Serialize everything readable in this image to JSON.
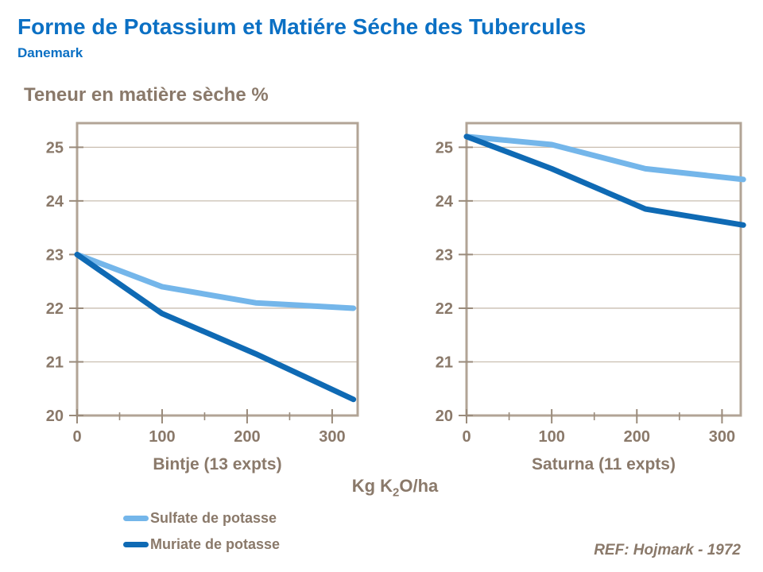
{
  "header": {
    "title": "Forme de Potassium et Matiére Séche des Tubercules",
    "subtitle": "Danemark"
  },
  "y_axis_title": "Teneur en matière sèche %",
  "x_unit": {
    "prefix": "Kg K",
    "sub": "2",
    "suffix": "O/ha"
  },
  "legend": [
    {
      "label": "Sulfate de potasse",
      "color": "#74B6EA"
    },
    {
      "label": "Muriate de potasse",
      "color": "#0F6AB4"
    }
  ],
  "ref": "REF: Hojmark - 1972",
  "colors": {
    "title_blue": "#0B70C4",
    "text_brown": "#8A796A",
    "frame": "#B2A496",
    "grid": "#C9BEB0",
    "tick": "#9A8B7B",
    "sulfate": "#74B6EA",
    "muriate": "#0F6AB4",
    "background": "#FFFFFF"
  },
  "chart_data": [
    {
      "type": "line",
      "title": "Bintje (13 expts)",
      "x_axis_label": "Kg K2O/ha",
      "y_axis_label": "Teneur en matière sèche %",
      "x": [
        0,
        100,
        210,
        325
      ],
      "xticks": [
        0,
        100,
        200,
        300
      ],
      "x_minor_ticks": [
        50,
        150,
        250
      ],
      "xlim": [
        0,
        330
      ],
      "yticks": [
        20,
        21,
        22,
        23,
        24,
        25
      ],
      "ylim": [
        20,
        25.45
      ],
      "grid": "horizontal",
      "legend_position": "below",
      "series": [
        {
          "name": "Sulfate de potasse",
          "color": "#74B6EA",
          "values": [
            23.0,
            22.4,
            22.1,
            22.0
          ]
        },
        {
          "name": "Muriate de potasse",
          "color": "#0F6AB4",
          "values": [
            23.0,
            21.9,
            21.15,
            20.3
          ]
        }
      ]
    },
    {
      "type": "line",
      "title": "Saturna (11 expts)",
      "x_axis_label": "Kg K2O/ha",
      "y_axis_label": "Teneur en matière sèche %",
      "x": [
        0,
        100,
        210,
        325
      ],
      "xticks": [
        0,
        100,
        200,
        300
      ],
      "x_minor_ticks": [
        50,
        150,
        250
      ],
      "xlim": [
        0,
        322
      ],
      "yticks": [
        20,
        21,
        22,
        23,
        24,
        25
      ],
      "ylim": [
        20,
        25.45
      ],
      "grid": "horizontal",
      "legend_position": "below",
      "series": [
        {
          "name": "Sulfate de potasse",
          "color": "#74B6EA",
          "values": [
            25.2,
            25.05,
            24.6,
            24.4
          ]
        },
        {
          "name": "Muriate de potasse",
          "color": "#0F6AB4",
          "values": [
            25.2,
            24.6,
            23.85,
            23.55
          ]
        }
      ]
    }
  ]
}
